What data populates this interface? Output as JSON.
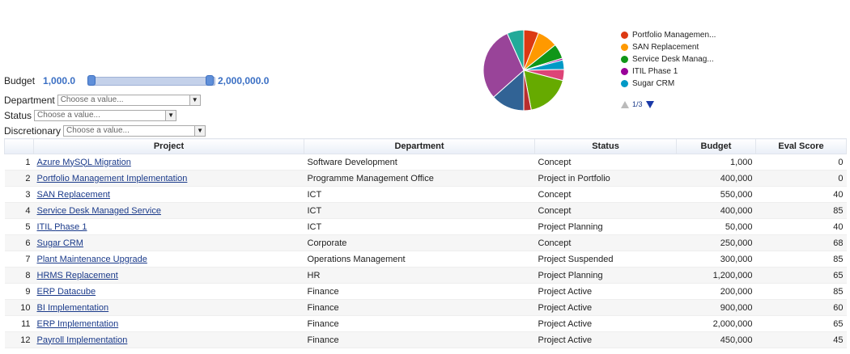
{
  "filters": {
    "budget": {
      "label": "Budget",
      "min_label": "1,000.0",
      "max_label": "2,000,000.0",
      "range_min": 1000,
      "range_max": 2000000,
      "value_min": 1000,
      "value_max": 2000000
    },
    "department": {
      "label": "Department",
      "placeholder": "Choose a value..."
    },
    "status": {
      "label": "Status",
      "placeholder": "Choose a value..."
    },
    "discretionary": {
      "label": "Discretionary",
      "placeholder": "Choose a value..."
    }
  },
  "chart_data": {
    "type": "pie",
    "slices": [
      {
        "name": "Azure MySQL Migration",
        "value": 1000,
        "color": "#3366cc"
      },
      {
        "name": "Portfolio Management Implementation",
        "value": 400000,
        "color": "#dc3912"
      },
      {
        "name": "SAN Replacement",
        "value": 550000,
        "color": "#ff9900"
      },
      {
        "name": "Service Desk Managed Service",
        "value": 400000,
        "color": "#109618"
      },
      {
        "name": "ITIL Phase 1",
        "value": 50000,
        "color": "#990099"
      },
      {
        "name": "Sugar CRM",
        "value": 250000,
        "color": "#0099c6"
      },
      {
        "name": "Plant Maintenance Upgrade",
        "value": 300000,
        "color": "#dd4477"
      },
      {
        "name": "HRMS Replacement",
        "value": 1200000,
        "color": "#66aa00"
      },
      {
        "name": "ERP Datacube",
        "value": 200000,
        "color": "#b82e2e"
      },
      {
        "name": "BI Implementation",
        "value": 900000,
        "color": "#316395"
      },
      {
        "name": "ERP Implementation",
        "value": 2000000,
        "color": "#994499"
      },
      {
        "name": "Payroll Implementation",
        "value": 450000,
        "color": "#22aa99"
      }
    ],
    "legend": [
      {
        "label": "Portfolio Managemen...",
        "color": "#dc3912"
      },
      {
        "label": "SAN Replacement",
        "color": "#ff9900"
      },
      {
        "label": "Service Desk Manag...",
        "color": "#109618"
      },
      {
        "label": "ITIL Phase 1",
        "color": "#990099"
      },
      {
        "label": "Sugar CRM",
        "color": "#0099c6"
      }
    ],
    "legend_position": "right",
    "pager": "1/3"
  },
  "table": {
    "columns": [
      "Project",
      "Department",
      "Status",
      "Budget",
      "Eval Score"
    ],
    "rows": [
      {
        "num": "1",
        "project": "Azure MySQL Migration",
        "department": "Software Development",
        "status": "Concept",
        "budget": "1,000",
        "score": "0"
      },
      {
        "num": "2",
        "project": "Portfolio Management Implementation",
        "department": "Programme Management Office",
        "status": "Project in Portfolio",
        "budget": "400,000",
        "score": "0"
      },
      {
        "num": "3",
        "project": "SAN Replacement",
        "department": "ICT",
        "status": "Concept",
        "budget": "550,000",
        "score": "40"
      },
      {
        "num": "4",
        "project": "Service Desk Managed Service",
        "department": "ICT",
        "status": "Concept",
        "budget": "400,000",
        "score": "85"
      },
      {
        "num": "5",
        "project": "ITIL Phase 1",
        "department": "ICT",
        "status": "Project Planning",
        "budget": "50,000",
        "score": "40"
      },
      {
        "num": "6",
        "project": "Sugar CRM",
        "department": "Corporate",
        "status": "Concept",
        "budget": "250,000",
        "score": "68"
      },
      {
        "num": "7",
        "project": "Plant Maintenance Upgrade",
        "department": "Operations Management",
        "status": "Project Suspended",
        "budget": "300,000",
        "score": "85"
      },
      {
        "num": "8",
        "project": "HRMS Replacement",
        "department": "HR",
        "status": "Project Planning",
        "budget": "1,200,000",
        "score": "65"
      },
      {
        "num": "9",
        "project": "ERP Datacube",
        "department": "Finance",
        "status": "Project Active",
        "budget": "200,000",
        "score": "85"
      },
      {
        "num": "10",
        "project": "BI Implementation",
        "department": "Finance",
        "status": "Project Active",
        "budget": "900,000",
        "score": "60"
      },
      {
        "num": "11",
        "project": "ERP Implementation",
        "department": "Finance",
        "status": "Project Active",
        "budget": "2,000,000",
        "score": "65"
      },
      {
        "num": "12",
        "project": "Payroll Implementation",
        "department": "Finance",
        "status": "Project Active",
        "budget": "450,000",
        "score": "45"
      }
    ]
  }
}
